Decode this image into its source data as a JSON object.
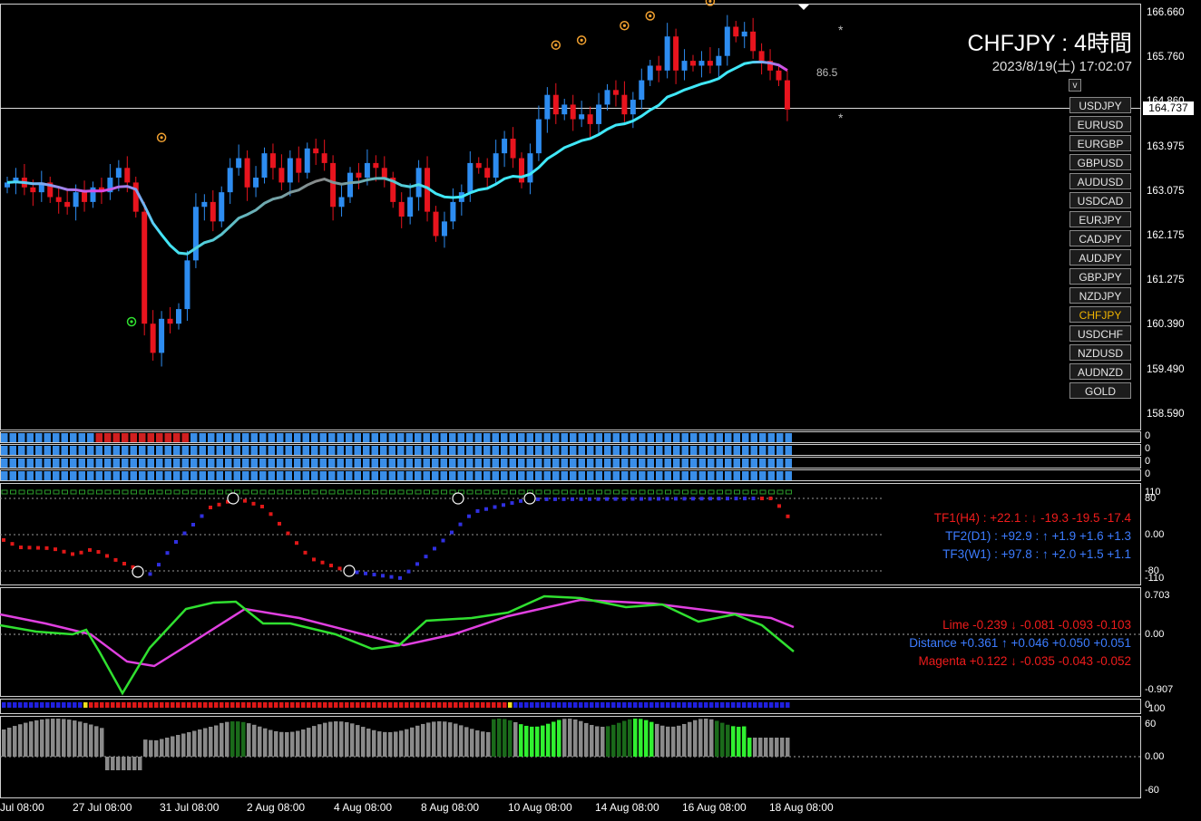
{
  "chart_title": "CHFJPY : 4時間",
  "datetime": "2023/8/19(土) 17:02:07",
  "current_price": "164.737",
  "side_value": "86.5",
  "star": "*",
  "v_button": "v",
  "symbols": [
    "USDJPY",
    "EURUSD",
    "EURGBP",
    "GBPUSD",
    "AUDUSD",
    "USDCAD",
    "EURJPY",
    "CADJPY",
    "AUDJPY",
    "GBPJPY",
    "NZDJPY",
    "CHFJPY",
    "USDCHF",
    "NZDUSD",
    "AUDNZD",
    "GOLD"
  ],
  "active_symbol": "CHFJPY",
  "price_axis": [
    "166.660",
    "165.760",
    "164.860",
    "163.975",
    "163.075",
    "162.175",
    "161.275",
    "160.390",
    "159.490",
    "158.590"
  ],
  "bar_panel_labels": [
    "0",
    "0",
    "0",
    "0"
  ],
  "osc_axis": [
    "110",
    "80",
    "0.00",
    "-80",
    "-110"
  ],
  "tf_lines": [
    {
      "label": "TF1(H4) : +22.1 : ↓ -19.3 -19.5 -17.4",
      "color": "red"
    },
    {
      "label": "TF2(D1) : +92.9 : ↑ +1.9 +1.6 +1.3",
      "color": "blue"
    },
    {
      "label": "TF3(W1) : +97.8 : ↑ +2.0 +1.5 +1.1",
      "color": "blue"
    }
  ],
  "macd_axis": [
    "0.703",
    "0.00",
    "-0.907"
  ],
  "macd_lines": [
    {
      "label": "Lime -0.239 ↓ -0.081 -0.093 -0.103",
      "color": "red"
    },
    {
      "label": "Distance +0.361 ↑ +0.046 +0.050 +0.051",
      "color": "blue"
    },
    {
      "label": "Magenta +0.122 ↓ -0.035 -0.043 -0.052",
      "color": "red"
    }
  ],
  "dot_panel_labels": [
    "0",
    "100"
  ],
  "hist_axis": [
    "60",
    "0.00",
    "-60"
  ],
  "time_axis": [
    "Jul 08:00",
    "27 Jul 08:00",
    "31 Jul 08:00",
    "2 Aug 08:00",
    "4 Aug 08:00",
    "8 Aug 08:00",
    "10 Aug 08:00",
    "14 Aug 08:00",
    "16 Aug 08:00",
    "18 Aug 08:00"
  ],
  "colors": {
    "bull": "#2d8cf0",
    "bear": "#e8141e",
    "cyan": "#40e8f8",
    "magenta": "#e040e0",
    "lime": "#30e030",
    "orange": "#f0a030"
  },
  "chart_data": {
    "type": "candlestick",
    "ylim": [
      158.2,
      166.8
    ],
    "closes": [
      163.2,
      163.3,
      163.1,
      163.0,
      163.2,
      162.9,
      162.8,
      162.7,
      163.0,
      162.8,
      163.1,
      163.0,
      163.3,
      163.5,
      163.2,
      162.6,
      160.3,
      159.7,
      160.4,
      160.3,
      160.6,
      161.6,
      162.7,
      162.8,
      162.4,
      163.0,
      163.5,
      163.7,
      163.1,
      163.3,
      163.8,
      163.5,
      163.2,
      163.7,
      163.4,
      163.9,
      163.8,
      163.6,
      162.7,
      162.9,
      163.4,
      163.3,
      163.6,
      163.5,
      163.3,
      162.8,
      162.5,
      162.9,
      163.5,
      162.6,
      162.1,
      162.4,
      162.8,
      163.0,
      163.6,
      163.5,
      163.3,
      163.8,
      164.1,
      163.7,
      163.2,
      163.8,
      164.5,
      165.0,
      164.6,
      164.8,
      164.5,
      164.6,
      164.4,
      164.8,
      165.1,
      165.0,
      164.6,
      164.9,
      165.3,
      165.6,
      165.5,
      166.2,
      165.5,
      165.7,
      165.6,
      165.7,
      165.6,
      165.8,
      166.4,
      166.2,
      166.3,
      165.9,
      165.7,
      165.5,
      165.3,
      164.7
    ]
  }
}
